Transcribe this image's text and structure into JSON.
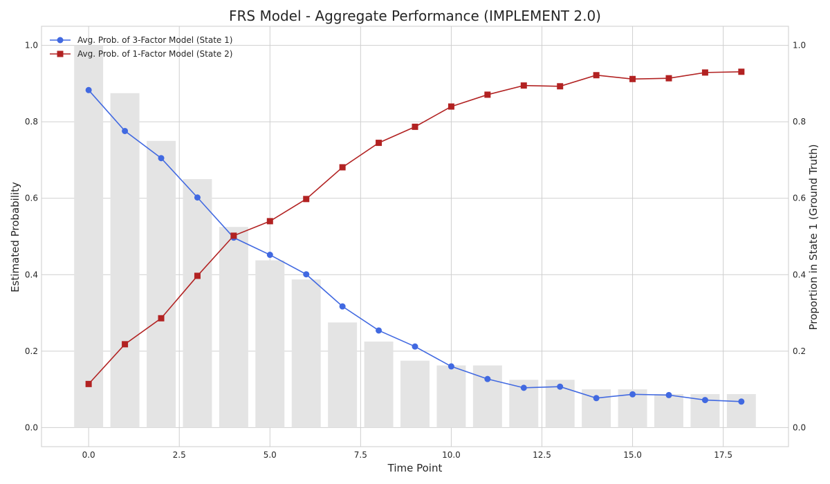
{
  "chart_data": {
    "type": "line",
    "title": "FRS Model - Aggregate Performance (IMPLEMENT 2.0)",
    "xlabel": "Time Point",
    "ylabel": "Estimated Probability",
    "y2label": "Proportion in State 1 (Ground Truth)",
    "xlim": [
      -1.3,
      19.3
    ],
    "ylim": [
      -0.05,
      1.05
    ],
    "y2lim": [
      -0.05,
      1.05
    ],
    "x_ticks": [
      0.0,
      2.5,
      5.0,
      7.5,
      10.0,
      12.5,
      15.0,
      17.5
    ],
    "x_tick_labels": [
      "0.0",
      "2.5",
      "5.0",
      "7.5",
      "10.0",
      "12.5",
      "15.0",
      "17.5"
    ],
    "y_ticks": [
      0.0,
      0.2,
      0.4,
      0.6,
      0.8,
      1.0
    ],
    "y_tick_labels": [
      "0.0",
      "0.2",
      "0.4",
      "0.6",
      "0.8",
      "1.0"
    ],
    "y2_ticks": [
      0.0,
      0.2,
      0.4,
      0.6,
      0.8,
      1.0
    ],
    "y2_tick_labels": [
      "0.0",
      "0.2",
      "0.4",
      "0.6",
      "0.8",
      "1.0"
    ],
    "grid": true,
    "legend_position": "top-left",
    "x": [
      0,
      1,
      2,
      3,
      4,
      5,
      6,
      7,
      8,
      9,
      10,
      11,
      12,
      13,
      14,
      15,
      16,
      17,
      18
    ],
    "series": [
      {
        "name": "Avg. Prob. of 3-Factor Model (State 1)",
        "marker": "circle",
        "color": "#4169e1",
        "axis": "left",
        "values": [
          0.883,
          0.776,
          0.705,
          0.602,
          0.497,
          0.452,
          0.401,
          0.317,
          0.254,
          0.212,
          0.16,
          0.127,
          0.104,
          0.107,
          0.077,
          0.087,
          0.085,
          0.072,
          0.068
        ]
      },
      {
        "name": "Avg. Prob. of 1-Factor Model (State 2)",
        "marker": "square",
        "color": "#b22222",
        "axis": "left",
        "values": [
          0.114,
          0.218,
          0.286,
          0.397,
          0.502,
          0.54,
          0.598,
          0.681,
          0.745,
          0.787,
          0.84,
          0.871,
          0.895,
          0.893,
          0.922,
          0.912,
          0.914,
          0.929,
          0.931
        ]
      }
    ],
    "bars": {
      "axis": "right",
      "color": "#e4e4e4",
      "values": [
        1.0,
        0.875,
        0.75,
        0.65,
        0.525,
        0.4375,
        0.3875,
        0.275,
        0.225,
        0.175,
        0.1625,
        0.1625,
        0.125,
        0.125,
        0.1,
        0.1,
        0.0875,
        0.0875,
        0.0875
      ]
    }
  }
}
